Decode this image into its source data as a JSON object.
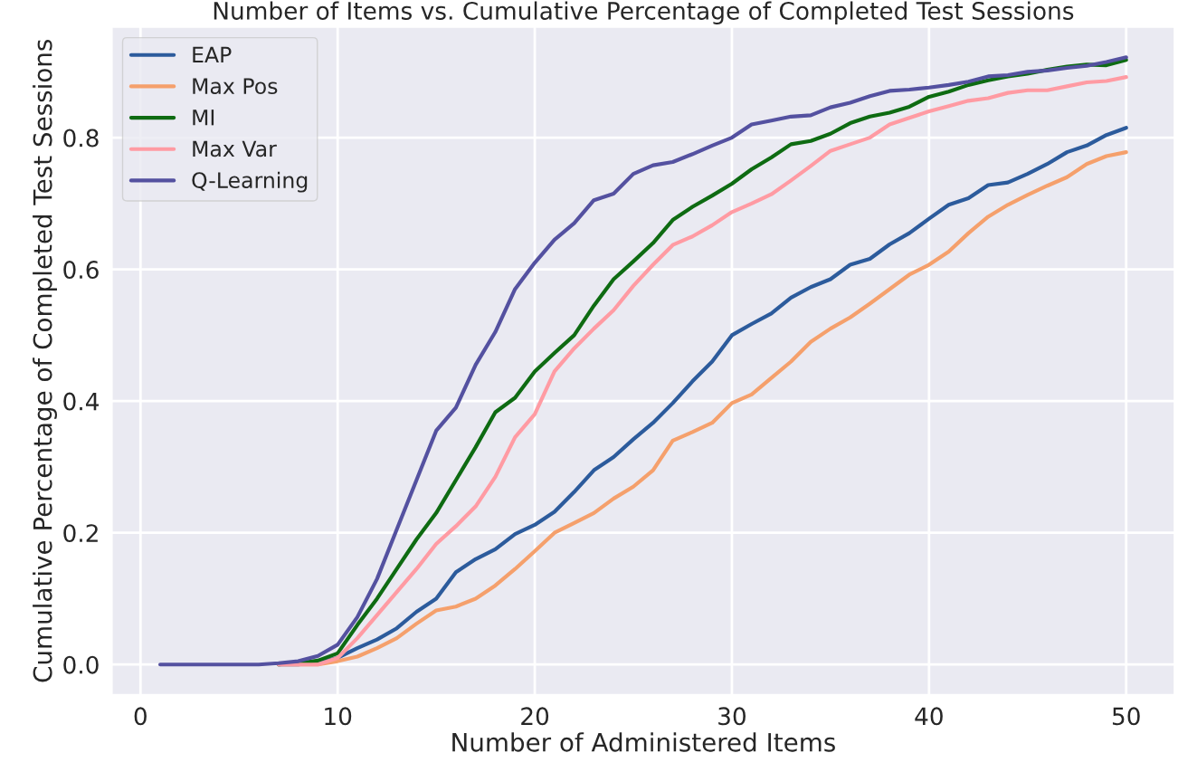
{
  "chart_data": {
    "type": "line",
    "title": "Number of Items vs. Cumulative Percentage of Completed Test Sessions",
    "xlabel": "Number of Administered Items",
    "ylabel": "Cumulative Percentage of Completed Test Sessions",
    "x": [
      1,
      2,
      3,
      4,
      5,
      6,
      7,
      8,
      9,
      10,
      11,
      12,
      13,
      14,
      15,
      16,
      17,
      18,
      19,
      20,
      21,
      22,
      23,
      24,
      25,
      26,
      27,
      28,
      29,
      30,
      31,
      32,
      33,
      34,
      35,
      36,
      37,
      38,
      39,
      40,
      41,
      42,
      43,
      44,
      45,
      46,
      47,
      48,
      49,
      50
    ],
    "series": [
      {
        "name": "EAP",
        "color": "#2c5b9c",
        "values": [
          null,
          null,
          null,
          null,
          null,
          null,
          0,
          0,
          0.003,
          0.01,
          0.025,
          0.038,
          0.055,
          0.08,
          0.1,
          0.14,
          0.16,
          0.175,
          0.198,
          0.212,
          0.232,
          0.262,
          0.295,
          0.315,
          0.342,
          0.367,
          0.397,
          0.43,
          0.46,
          0.5,
          0.517,
          0.533,
          0.557,
          0.573,
          0.585,
          0.607,
          0.616,
          0.638,
          0.655,
          0.677,
          0.698,
          0.708,
          0.728,
          0.732,
          0.745,
          0.76,
          0.778,
          0.788,
          0.804,
          0.815
        ]
      },
      {
        "name": "Max Pos",
        "color": "#f5a06c",
        "values": [
          null,
          null,
          null,
          null,
          null,
          null,
          0,
          0,
          0,
          0.005,
          0.012,
          0.025,
          0.04,
          0.062,
          0.082,
          0.088,
          0.1,
          0.12,
          0.145,
          0.172,
          0.2,
          0.215,
          0.23,
          0.252,
          0.27,
          0.295,
          0.34,
          0.353,
          0.367,
          0.397,
          0.41,
          0.435,
          0.46,
          0.49,
          0.51,
          0.527,
          0.548,
          0.57,
          0.592,
          0.607,
          0.627,
          0.655,
          0.68,
          0.698,
          0.713,
          0.727,
          0.74,
          0.76,
          0.772,
          0.778
        ]
      },
      {
        "name": "MI",
        "color": "#0e6b12",
        "values": [
          null,
          null,
          null,
          null,
          null,
          null,
          0,
          0.002,
          0.006,
          0.017,
          0.06,
          0.1,
          0.145,
          0.19,
          0.23,
          0.28,
          0.33,
          0.383,
          0.405,
          0.445,
          0.473,
          0.5,
          0.545,
          0.585,
          0.612,
          0.64,
          0.675,
          0.695,
          0.712,
          0.73,
          0.752,
          0.77,
          0.79,
          0.795,
          0.806,
          0.822,
          0.832,
          0.838,
          0.847,
          0.862,
          0.87,
          0.88,
          0.887,
          0.893,
          0.897,
          0.903,
          0.908,
          0.911,
          0.91,
          0.918
        ]
      },
      {
        "name": "Max Var",
        "color": "#ff9ba3",
        "values": [
          null,
          null,
          null,
          null,
          null,
          null,
          0,
          0,
          0,
          0.01,
          0.04,
          0.075,
          0.11,
          0.145,
          0.183,
          0.21,
          0.24,
          0.285,
          0.345,
          0.38,
          0.445,
          0.48,
          0.51,
          0.538,
          0.575,
          0.607,
          0.637,
          0.65,
          0.667,
          0.687,
          0.7,
          0.714,
          0.735,
          0.757,
          0.78,
          0.79,
          0.8,
          0.82,
          0.83,
          0.84,
          0.848,
          0.856,
          0.86,
          0.868,
          0.872,
          0.872,
          0.878,
          0.884,
          0.886,
          0.892
        ]
      },
      {
        "name": "Q-Learning",
        "color": "#5451a0",
        "values": [
          0,
          0,
          0,
          0,
          0,
          0,
          0.002,
          0.005,
          0.013,
          0.03,
          0.072,
          0.13,
          0.205,
          0.28,
          0.355,
          0.39,
          0.455,
          0.505,
          0.57,
          0.61,
          0.645,
          0.67,
          0.705,
          0.715,
          0.745,
          0.758,
          0.763,
          0.775,
          0.788,
          0.8,
          0.82,
          0.826,
          0.832,
          0.834,
          0.846,
          0.853,
          0.863,
          0.871,
          0.873,
          0.876,
          0.88,
          0.885,
          0.893,
          0.895,
          0.9,
          0.902,
          0.906,
          0.909,
          0.915,
          0.922
        ]
      }
    ],
    "xlim": [
      -1.45,
      52.45
    ],
    "ylim": [
      -0.046,
      0.968
    ],
    "xticks": [
      0,
      10,
      20,
      30,
      40,
      50
    ],
    "yticks": [
      {
        "value": 0,
        "label": "0.0"
      },
      {
        "value": 0.2,
        "label": "0.2"
      },
      {
        "value": 0.4,
        "label": "0.4"
      },
      {
        "value": 0.6,
        "label": "0.6"
      },
      {
        "value": 0.8,
        "label": "0.8"
      }
    ],
    "grid": true,
    "legend": "top left",
    "line_style": "solid",
    "marker": "none"
  }
}
